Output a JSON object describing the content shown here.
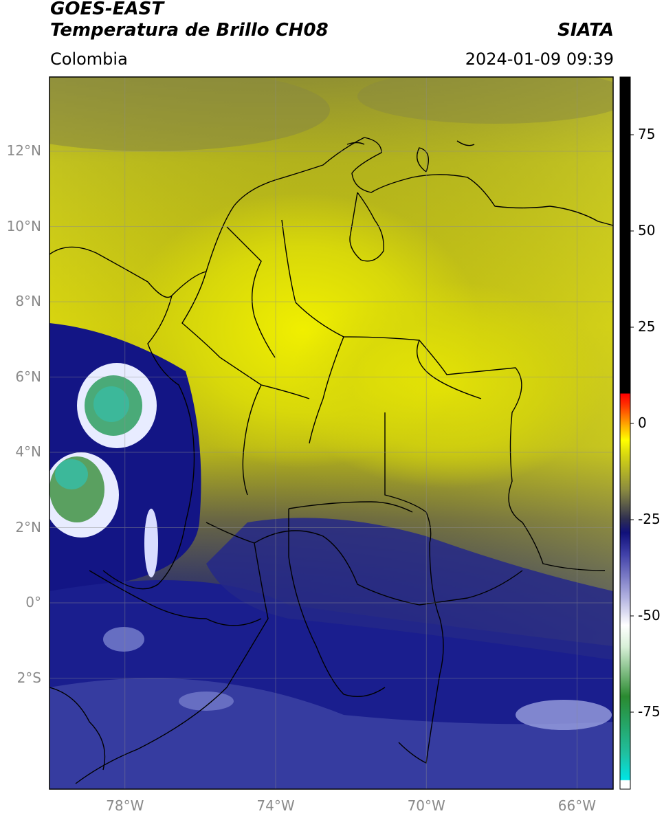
{
  "header": {
    "satellite": "GOES-EAST",
    "product": "Temperatura de Brillo CH08",
    "region": "Colombia",
    "org": "SIATA",
    "datetime": "2024-01-09 09:39"
  },
  "map": {
    "lat_labels": [
      "12°N",
      "10°N",
      "8°N",
      "6°N",
      "4°N",
      "2°N",
      "0°",
      "2°S"
    ],
    "lon_labels": [
      "78°W",
      "74°W",
      "70°W",
      "66°W"
    ],
    "lat_range": [
      -5,
      14
    ],
    "lon_range": [
      -80,
      -65
    ],
    "gridlines": true,
    "colors": {
      "cold_blue": "#1a1f8a",
      "warm_yellow": "#e8e000",
      "cloud_white": "#f2f2ff",
      "deep_green": "#3aa070"
    }
  },
  "colorbar": {
    "unit_range": [
      -95,
      90
    ],
    "tick_labels": [
      "75",
      "50",
      "25",
      "0",
      "-25",
      "-50",
      "-75"
    ],
    "tick_values": [
      75,
      50,
      25,
      0,
      -25,
      -50,
      -75
    ]
  }
}
